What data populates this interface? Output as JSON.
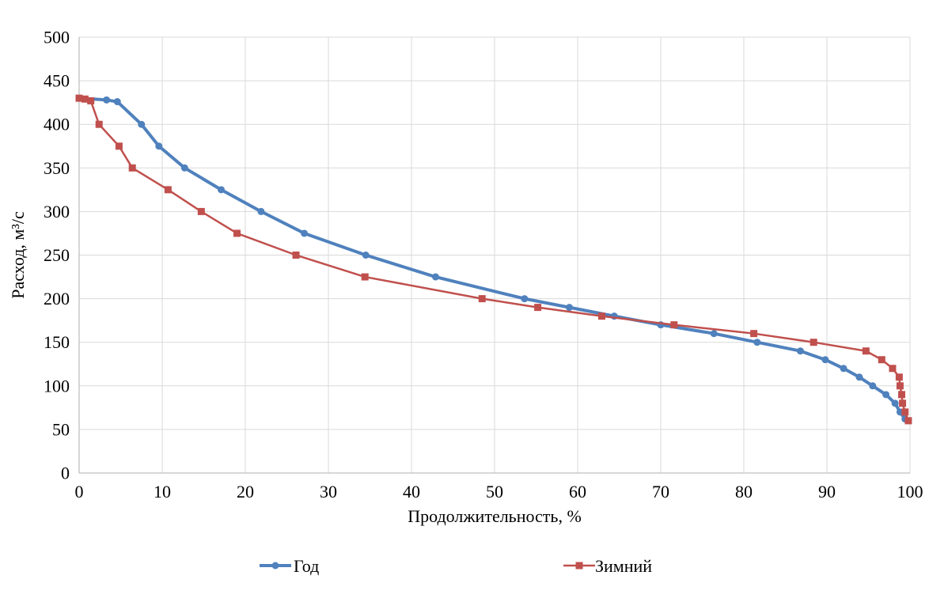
{
  "chart_data": {
    "type": "line",
    "title": "",
    "xlabel": "Продолжительность, %",
    "ylabel": "Расход, м³/с",
    "xlim": [
      0,
      100
    ],
    "ylim": [
      0,
      500
    ],
    "x_ticks": [
      0,
      10,
      20,
      30,
      40,
      50,
      60,
      70,
      80,
      90,
      100
    ],
    "y_ticks": [
      0,
      50,
      100,
      150,
      200,
      250,
      300,
      350,
      400,
      450,
      500
    ],
    "grid": true,
    "legend_position": "bottom",
    "series": [
      {
        "name": "Год",
        "color": "#4F81BD",
        "marker": "circle",
        "line_width": 4,
        "points": [
          [
            0,
            430
          ],
          [
            3.3,
            428
          ],
          [
            4.6,
            426
          ],
          [
            7.5,
            400
          ],
          [
            9.6,
            375
          ],
          [
            12.7,
            350
          ],
          [
            17.1,
            325
          ],
          [
            21.9,
            300
          ],
          [
            27.1,
            275
          ],
          [
            34.5,
            250
          ],
          [
            42.9,
            225
          ],
          [
            53.6,
            200
          ],
          [
            59.0,
            190
          ],
          [
            64.4,
            180
          ],
          [
            70.0,
            170
          ],
          [
            76.4,
            160
          ],
          [
            81.6,
            150
          ],
          [
            86.8,
            140
          ],
          [
            89.8,
            130
          ],
          [
            92.0,
            120
          ],
          [
            93.9,
            110
          ],
          [
            95.5,
            100
          ],
          [
            97.1,
            90
          ],
          [
            98.2,
            80
          ],
          [
            98.8,
            70
          ],
          [
            99.4,
            62
          ]
        ]
      },
      {
        "name": "Зимний",
        "color": "#C0504D",
        "marker": "square",
        "line_width": 2.5,
        "points": [
          [
            0,
            430
          ],
          [
            0.7,
            429
          ],
          [
            1.4,
            427
          ],
          [
            2.4,
            400
          ],
          [
            4.8,
            375
          ],
          [
            6.4,
            350
          ],
          [
            10.7,
            325
          ],
          [
            14.7,
            300
          ],
          [
            19.0,
            275
          ],
          [
            26.1,
            250
          ],
          [
            34.4,
            225
          ],
          [
            48.5,
            200
          ],
          [
            55.2,
            190
          ],
          [
            62.9,
            180
          ],
          [
            71.6,
            170
          ],
          [
            81.2,
            160
          ],
          [
            88.4,
            150
          ],
          [
            94.7,
            140
          ],
          [
            96.6,
            130
          ],
          [
            97.9,
            120
          ],
          [
            98.7,
            110
          ],
          [
            98.8,
            100
          ],
          [
            99.0,
            90
          ],
          [
            99.1,
            80
          ],
          [
            99.4,
            70
          ],
          [
            99.8,
            60
          ]
        ]
      }
    ]
  },
  "styles": {
    "grid_color": "#D9D9D9",
    "axis_color": "#BFBFBF",
    "text_color": "#000000",
    "background": "#FFFFFF"
  }
}
